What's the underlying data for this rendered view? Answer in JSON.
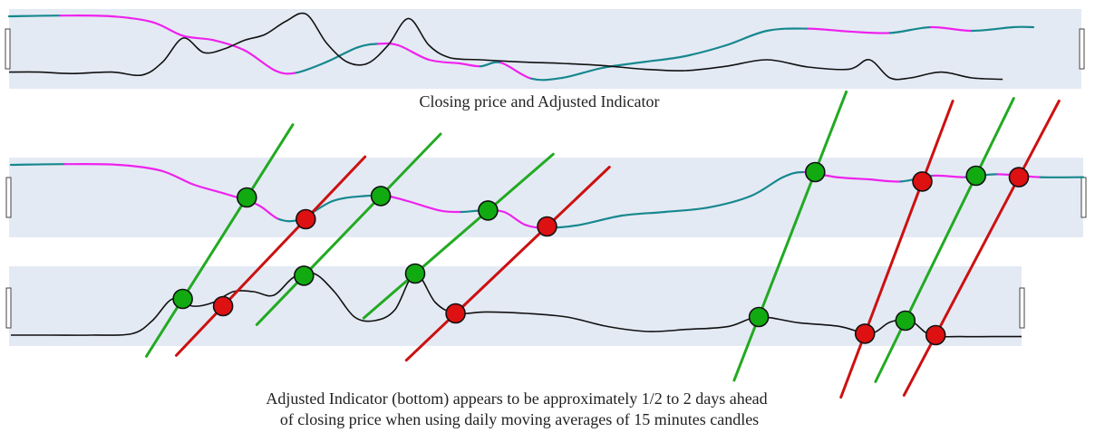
{
  "captions": {
    "top": "Closing price and Adjusted Indicator",
    "bottom_line1": "Adjusted Indicator (bottom) appears to be approximately 1/2 to 2 days ahead",
    "bottom_line2": "of closing price when using daily moving averages of 15 minutes candles"
  },
  "colors": {
    "indicator_up": "#17888e",
    "indicator_down": "#ee22ee",
    "price": "#111111",
    "signal_buy": "#11aa11",
    "signal_sell": "#dd1111",
    "buy_line": "#22aa22",
    "sell_line": "#cc1111",
    "panel_background": "#e4eaf4"
  },
  "chart_data": {
    "type": "line",
    "title": "Closing price and Adjusted Indicator",
    "note": "",
    "x_range": [
      0,
      100
    ],
    "panels": [
      {
        "name": "top",
        "series": [
          {
            "role": "indicator",
            "y_range": [
              0,
              1
            ],
            "points": [
              [
                0,
                0.95
              ],
              [
                5,
                0.96
              ],
              [
                10,
                0.95
              ],
              [
                14,
                0.87
              ],
              [
                17,
                0.68
              ],
              [
                20,
                0.62
              ],
              [
                23,
                0.48
              ],
              [
                26,
                0.2
              ],
              [
                28,
                0.17
              ],
              [
                31,
                0.32
              ],
              [
                34,
                0.52
              ],
              [
                36,
                0.57
              ],
              [
                38,
                0.55
              ],
              [
                41,
                0.35
              ],
              [
                44,
                0.3
              ],
              [
                46,
                0.26
              ],
              [
                48,
                0.31
              ],
              [
                51,
                0.09
              ],
              [
                54,
                0.1
              ],
              [
                58,
                0.24
              ],
              [
                62,
                0.32
              ],
              [
                66,
                0.4
              ],
              [
                70,
                0.55
              ],
              [
                74,
                0.75
              ],
              [
                78,
                0.78
              ],
              [
                82,
                0.74
              ],
              [
                86,
                0.72
              ],
              [
                90,
                0.8
              ],
              [
                94,
                0.75
              ],
              [
                98,
                0.8
              ],
              [
                100,
                0.8
              ]
            ]
          },
          {
            "role": "price",
            "y_range": [
              0,
              1
            ],
            "points": [
              [
                0,
                0.18
              ],
              [
                3,
                0.18
              ],
              [
                6,
                0.16
              ],
              [
                10,
                0.18
              ],
              [
                13,
                0.14
              ],
              [
                15,
                0.32
              ],
              [
                17,
                0.65
              ],
              [
                19,
                0.45
              ],
              [
                21,
                0.5
              ],
              [
                23,
                0.62
              ],
              [
                25,
                0.7
              ],
              [
                27,
                0.88
              ],
              [
                29,
                0.98
              ],
              [
                31,
                0.58
              ],
              [
                33,
                0.32
              ],
              [
                35,
                0.3
              ],
              [
                37,
                0.55
              ],
              [
                39,
                0.92
              ],
              [
                41,
                0.55
              ],
              [
                43,
                0.38
              ],
              [
                46,
                0.35
              ],
              [
                50,
                0.32
              ],
              [
                54,
                0.3
              ],
              [
                58,
                0.27
              ],
              [
                62,
                0.22
              ],
              [
                66,
                0.2
              ],
              [
                70,
                0.26
              ],
              [
                74,
                0.35
              ],
              [
                78,
                0.25
              ],
              [
                82,
                0.22
              ],
              [
                84,
                0.35
              ],
              [
                86,
                0.1
              ],
              [
                88,
                0.1
              ],
              [
                91,
                0.18
              ],
              [
                94,
                0.1
              ],
              [
                97,
                0.08
              ]
            ]
          }
        ]
      },
      {
        "name": "middle",
        "series": [
          {
            "role": "indicator",
            "y_range": [
              0,
              1
            ],
            "points": [
              [
                0,
                0.95
              ],
              [
                5,
                0.96
              ],
              [
                10,
                0.95
              ],
              [
                14,
                0.87
              ],
              [
                17,
                0.68
              ],
              [
                20,
                0.55
              ],
              [
                23,
                0.4
              ],
              [
                25,
                0.2
              ],
              [
                27,
                0.2
              ],
              [
                30,
                0.45
              ],
              [
                33,
                0.52
              ],
              [
                35,
                0.52
              ],
              [
                37,
                0.45
              ],
              [
                40,
                0.32
              ],
              [
                42,
                0.3
              ],
              [
                44,
                0.32
              ],
              [
                46,
                0.3
              ],
              [
                48,
                0.12
              ],
              [
                50,
                0.08
              ],
              [
                53,
                0.12
              ],
              [
                57,
                0.25
              ],
              [
                61,
                0.3
              ],
              [
                65,
                0.36
              ],
              [
                69,
                0.52
              ],
              [
                72,
                0.78
              ],
              [
                74,
                0.85
              ],
              [
                77,
                0.78
              ],
              [
                80,
                0.75
              ],
              [
                83,
                0.72
              ],
              [
                86,
                0.8
              ],
              [
                89,
                0.78
              ],
              [
                92,
                0.82
              ],
              [
                96,
                0.78
              ],
              [
                100,
                0.78
              ]
            ]
          }
        ]
      },
      {
        "name": "bottom",
        "series": [
          {
            "role": "price",
            "y_range": [
              0,
              1
            ],
            "points": [
              [
                0,
                0.1
              ],
              [
                4,
                0.1
              ],
              [
                8,
                0.1
              ],
              [
                12,
                0.12
              ],
              [
                14,
                0.3
              ],
              [
                16,
                0.6
              ],
              [
                18,
                0.5
              ],
              [
                20,
                0.55
              ],
              [
                22,
                0.7
              ],
              [
                24,
                0.7
              ],
              [
                26,
                0.65
              ],
              [
                28,
                0.9
              ],
              [
                30,
                0.95
              ],
              [
                32,
                0.7
              ],
              [
                34,
                0.35
              ],
              [
                36,
                0.3
              ],
              [
                38,
                0.45
              ],
              [
                40,
                0.95
              ],
              [
                42,
                0.55
              ],
              [
                44,
                0.4
              ],
              [
                47,
                0.42
              ],
              [
                51,
                0.4
              ],
              [
                55,
                0.35
              ],
              [
                59,
                0.22
              ],
              [
                63,
                0.15
              ],
              [
                67,
                0.18
              ],
              [
                71,
                0.22
              ],
              [
                74,
                0.35
              ],
              [
                78,
                0.27
              ],
              [
                82,
                0.22
              ],
              [
                85,
                0.12
              ],
              [
                87,
                0.28
              ],
              [
                89,
                0.3
              ],
              [
                91,
                0.1
              ],
              [
                94,
                0.08
              ],
              [
                97,
                0.08
              ],
              [
                100,
                0.08
              ]
            ]
          }
        ]
      }
    ],
    "signals": [
      {
        "type": "buy",
        "indicator": [
          22,
          0.5
        ],
        "price": [
          17,
          0.6
        ]
      },
      {
        "type": "sell",
        "indicator": [
          27.5,
          0.2
        ],
        "price": [
          21,
          0.5
        ]
      },
      {
        "type": "buy",
        "indicator": [
          34.5,
          0.52
        ],
        "price": [
          29,
          0.92
        ]
      },
      {
        "type": "buy",
        "indicator": [
          44.5,
          0.32
        ],
        "price": [
          40,
          0.95
        ]
      },
      {
        "type": "sell",
        "indicator": [
          50,
          0.1
        ],
        "price": [
          44,
          0.4
        ]
      },
      {
        "type": "buy",
        "indicator": [
          75,
          0.85
        ],
        "price": [
          74,
          0.35
        ]
      },
      {
        "type": "sell",
        "indicator": [
          85,
          0.72
        ],
        "price": [
          84.5,
          0.12
        ]
      },
      {
        "type": "buy",
        "indicator": [
          90,
          0.8
        ],
        "price": [
          88.5,
          0.3
        ]
      },
      {
        "type": "sell",
        "indicator": [
          94,
          0.78
        ],
        "price": [
          91.5,
          0.1
        ]
      }
    ]
  }
}
